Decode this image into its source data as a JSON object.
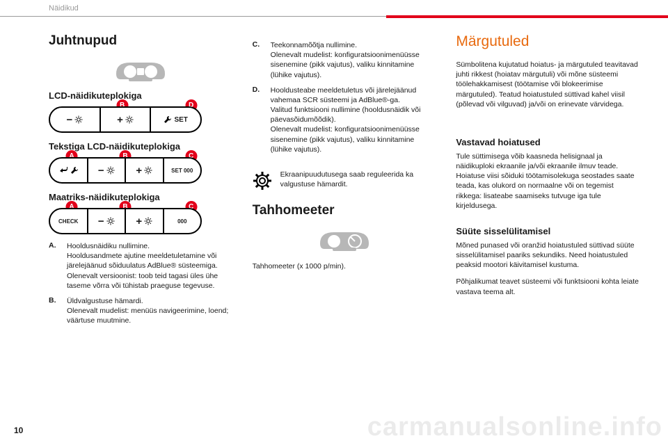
{
  "colors": {
    "accent_red": "#e2001a",
    "accent_orange": "#e86a0f",
    "text": "#1a1a1a",
    "grey": "#9a9a9a",
    "icon_grey": "#b7b7b7",
    "watermark": "rgba(0,0,0,0.08)"
  },
  "header": {
    "section": "Näidikud",
    "page_number": "10",
    "watermark": "carmanualsonline.info"
  },
  "col1": {
    "title": "Juhtnupud",
    "lcd_heading": "LCD-näidikuteplokiga",
    "text_lcd_heading": "Tekstiga LCD-näidikuteplokiga",
    "matrix_heading": "Maatriks-näidikuteplokiga",
    "panel_lcd": {
      "markers": [
        {
          "label": "B",
          "pos_pct": 48
        },
        {
          "label": "D",
          "pos_pct": 93
        }
      ],
      "segments": [
        {
          "text": "−",
          "sun": true
        },
        {
          "text": "+",
          "sun": true
        },
        {
          "wrench": true,
          "text": "SET"
        }
      ]
    },
    "panel_textlcd": {
      "markers": [
        {
          "label": "A",
          "pos_pct": 15
        },
        {
          "label": "B",
          "pos_pct": 50
        },
        {
          "label": "C",
          "pos_pct": 93
        }
      ],
      "segments": [
        {
          "return": true,
          "wrench": true
        },
        {
          "text": "−",
          "sun": true
        },
        {
          "text": "+",
          "sun": true
        },
        {
          "text": "SET 000",
          "small": true
        }
      ]
    },
    "panel_matrix": {
      "markers": [
        {
          "label": "A",
          "pos_pct": 15
        },
        {
          "label": "B",
          "pos_pct": 50
        },
        {
          "label": "C",
          "pos_pct": 93
        }
      ],
      "segments": [
        {
          "text": "CHECK",
          "small": true
        },
        {
          "text": "−",
          "sun": true
        },
        {
          "text": "+",
          "sun": true
        },
        {
          "text": "000",
          "small": true
        }
      ]
    },
    "defs": [
      {
        "label": "A.",
        "text": "Hooldusnäidiku nullimine.\nHooldusandmete ajutine meeldetuletamine või järelejäänud sõiduulatus AdBlue® süsteemiga.\nOlenevalt versioonist: toob teid tagasi üles ühe taseme võrra või tühistab praeguse tegevuse."
      },
      {
        "label": "B.",
        "text": "Üldvalgustuse hämardi.\nOlenevalt mudelist: menüüs navigeerimine, loend; väärtuse muutmine."
      }
    ]
  },
  "col2": {
    "defs": [
      {
        "label": "C.",
        "text": "Teekonnamõõtja nullimine.\nOlenevalt mudelist: konfiguratsioonimenüüsse sisenemine (pikk vajutus), valiku kinnitamine (lühike vajutus)."
      },
      {
        "label": "D.",
        "text": "Hooldusteabe meeldetuletus või järelejäänud vahemaa SCR süsteemi ja AdBlue®-ga.\nValitud funktsiooni nullimine (hooldusnäidik või päevasõidumõõdik).\nOlenevalt mudelist: konfiguratsioonimenüüsse sisenemine (pikk vajutus), valiku kinnitamine (lühike vajutus)."
      }
    ],
    "note": "Ekraanipuudutusega saab reguleerida ka valgustuse hämardit.",
    "tach_heading": "Tahhomeeter",
    "tach_caption": "Tahhomeeter (x 1000 p/min)."
  },
  "col3": {
    "title": "Märgutuled",
    "intro": "Sümbolitena kujutatud hoiatus- ja märgutuled teavitavad juhti rikkest (hoiatav märgutuli) või mõne süsteemi töölehakkamisest (töötamise või blokeerimise märgutuled). Teatud hoiatustuled süttivad kahel viisil (põlevad või vilguvad) ja/või on erinevate värvidega.",
    "h_warn": "Vastavad hoiatused",
    "p_warn": "Tule süttimisega võib kaasneda helisignaal ja näidikuploki ekraanile ja/või ekraanile ilmuv teade.\nHoiatuse viisi sõiduki töötamisolekuga seostades saate teada, kas olukord on normaalne või on tegemist rikkega: lisateabe saamiseks tutvuge iga tule kirjeldusega.",
    "h_ign": "Süüte sisselülitamisel",
    "p_ign": "Mõned punased või oranžid hoiatustuled süttivad süüte sisselülitamisel paariks sekundiks. Need hoiatustuled peaksid mootori käivitamisel kustuma.",
    "p_more": "Põhjalikumat teavet süsteemi või funktsiooni kohta leiate vastava teema alt."
  }
}
